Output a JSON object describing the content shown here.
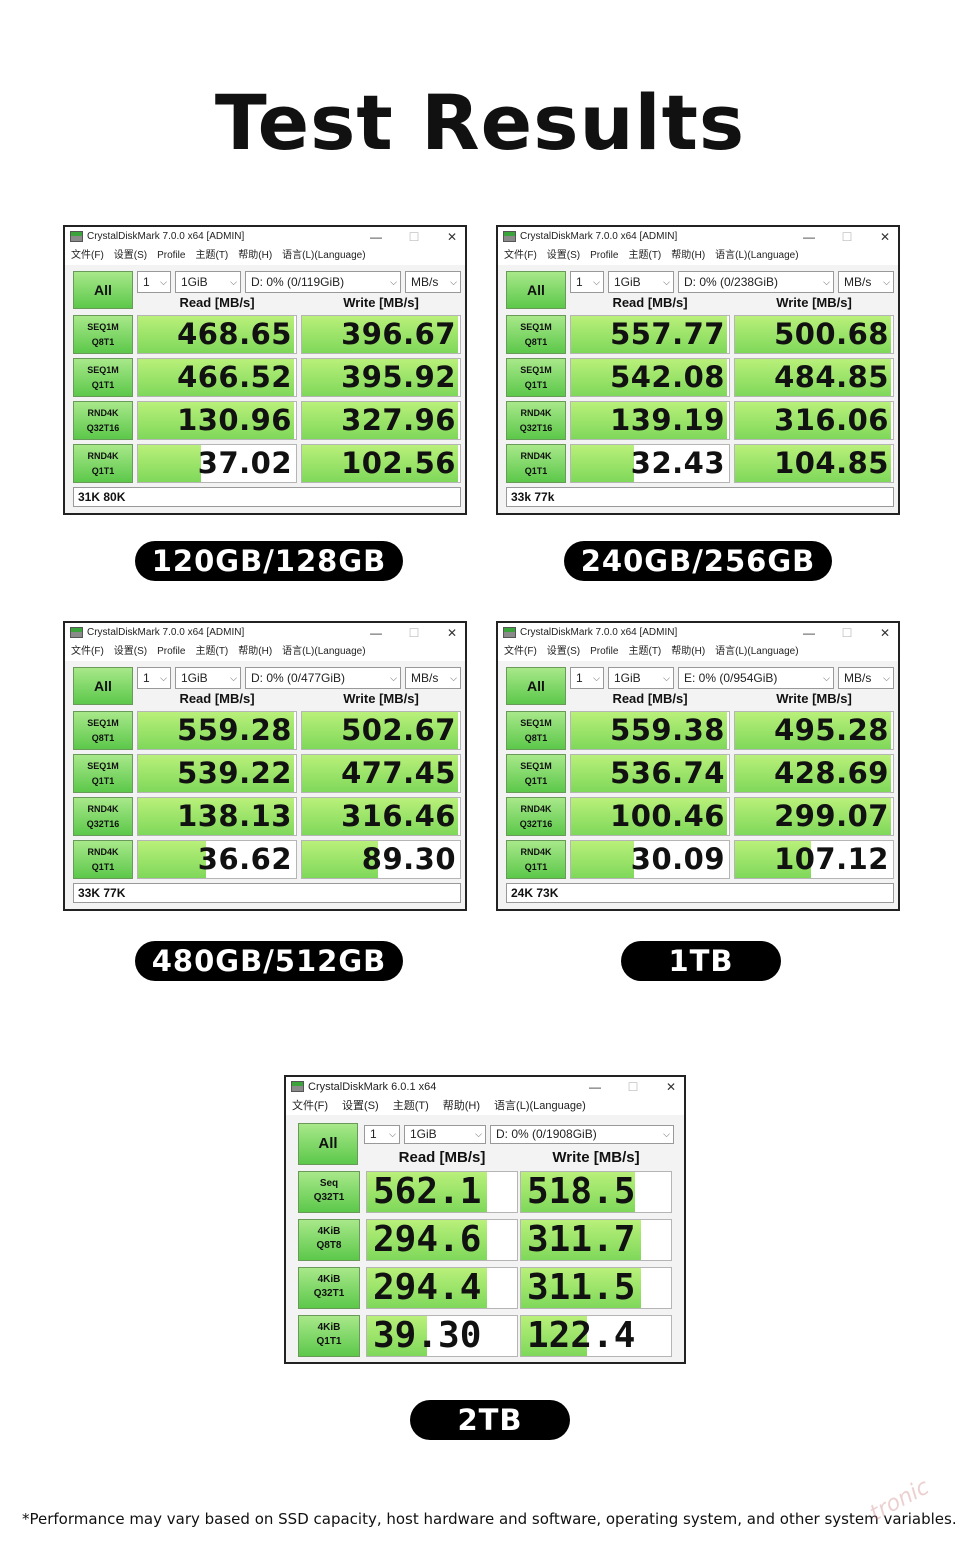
{
  "page": {
    "title": "Test Results",
    "footnote": "*Performance may vary based on SSD capacity, host hardware and software, operating system, and other system variables.",
    "watermark": "tronic"
  },
  "window_common": {
    "title": "CrystalDiskMark 7.0.0 x64 [ADMIN]",
    "menu": [
      "文件(F)",
      "设置(S)",
      "Profile",
      "主题(T)",
      "帮助(H)",
      "语言(L)(Language)"
    ],
    "minimize": "—",
    "maximize": "☐",
    "close": "✕",
    "all_button": "All",
    "count": "1",
    "size": "1GiB",
    "unit": "MB/s",
    "read_header": "Read [MB/s]",
    "write_header": "Write [MB/s]",
    "tests": [
      {
        "line1": "SEQ1M",
        "line2": "Q8T1"
      },
      {
        "line1": "SEQ1M",
        "line2": "Q1T1"
      },
      {
        "line1": "RND4K",
        "line2": "Q32T16"
      },
      {
        "line1": "RND4K",
        "line2": "Q1T1"
      }
    ]
  },
  "panels": [
    {
      "capacity": "120GB/128GB",
      "drive": "D: 0% (0/119GiB)",
      "status": "31K 80K",
      "read": [
        "468.65",
        "466.52",
        "130.96",
        "37.02"
      ],
      "write": [
        "396.67",
        "395.92",
        "327.96",
        "102.56"
      ],
      "read_fill": [
        0.99,
        0.99,
        0.99,
        0.4
      ],
      "write_fill": [
        0.99,
        0.99,
        0.99,
        0.99
      ]
    },
    {
      "capacity": "240GB/256GB",
      "drive": "D: 0% (0/238GiB)",
      "status": "33k  77k",
      "read": [
        "557.77",
        "542.08",
        "139.19",
        "32.43"
      ],
      "write": [
        "500.68",
        "484.85",
        "316.06",
        "104.85"
      ],
      "read_fill": [
        0.99,
        0.99,
        0.99,
        0.4
      ],
      "write_fill": [
        0.99,
        0.99,
        0.99,
        0.99
      ]
    },
    {
      "capacity": "480GB/512GB",
      "drive": "D: 0% (0/477GiB)",
      "status": "33K 77K",
      "read": [
        "559.28",
        "539.22",
        "138.13",
        "36.62"
      ],
      "write": [
        "502.67",
        "477.45",
        "316.46",
        "89.30"
      ],
      "read_fill": [
        0.99,
        0.99,
        0.99,
        0.43
      ],
      "write_fill": [
        0.99,
        0.99,
        0.99,
        0.48
      ]
    },
    {
      "capacity": "1TB",
      "drive": "E: 0% (0/954GiB)",
      "status": "24K  73K",
      "read": [
        "559.38",
        "536.74",
        "100.46",
        "30.09"
      ],
      "write": [
        "495.28",
        "428.69",
        "299.07",
        "107.12"
      ],
      "read_fill": [
        0.99,
        0.99,
        0.99,
        0.4
      ],
      "write_fill": [
        0.99,
        0.99,
        0.99,
        0.48
      ]
    }
  ],
  "panel_2tb": {
    "capacity": "2TB",
    "title": "CrystalDiskMark 6.0.1 x64",
    "menu": [
      "文件(F)",
      "设置(S)",
      "主题(T)",
      "帮助(H)",
      "语言(L)(Language)"
    ],
    "all_button": "All",
    "count": "1",
    "size": "1GiB",
    "drive": "D: 0% (0/1908GiB)",
    "read_header": "Read [MB/s]",
    "write_header": "Write [MB/s]",
    "tests": [
      {
        "line1": "Seq",
        "line2": "Q32T1"
      },
      {
        "line1": "4KiB",
        "line2": "Q8T8"
      },
      {
        "line1": "4KiB",
        "line2": "Q32T1"
      },
      {
        "line1": "4KiB",
        "line2": "Q1T1"
      }
    ],
    "read": [
      "562.1",
      "294.6",
      "294.4",
      "39.30"
    ],
    "write": [
      "518.5",
      "311.7",
      "311.5",
      "122.4"
    ],
    "read_fill": [
      0.8,
      0.8,
      0.8,
      0.4
    ],
    "write_fill": [
      0.76,
      0.8,
      0.8,
      0.44
    ]
  }
}
